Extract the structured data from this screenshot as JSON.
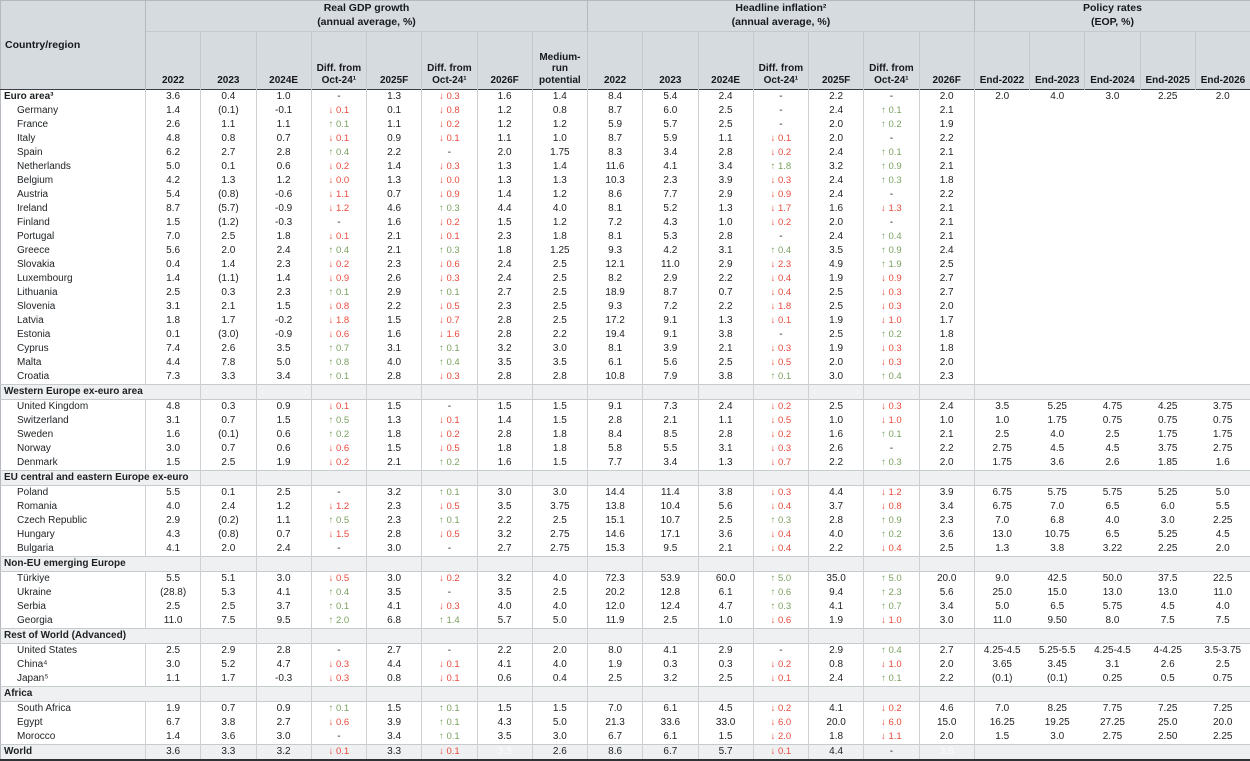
{
  "header": {
    "country": "Country/region",
    "groups": [
      {
        "title": "Real GDP growth",
        "subtitle": "(annual average, %)",
        "cols": [
          "2022",
          "2023",
          "2024E",
          "Diff. from Oct-24¹",
          "2025F",
          "Diff. from Oct-24¹",
          "2026F",
          "Medium-run potential"
        ]
      },
      {
        "title": "Headline inflation²",
        "subtitle": "(annual average, %)",
        "cols": [
          "2022",
          "2023",
          "2024E",
          "Diff. from Oct-24¹",
          "2025F",
          "Diff. from Oct-24¹",
          "2026F"
        ]
      },
      {
        "title": "Policy rates",
        "subtitle": "(EOP, %)",
        "cols": [
          "End-2022",
          "End-2023",
          "End-2024",
          "End-2025",
          "End-2026"
        ]
      }
    ]
  },
  "colors": {
    "diff_up": "#7ba161",
    "diff_down": "#e84a3c",
    "header_bg": "#d6dbdf",
    "band_bg": "#eef0f1"
  },
  "rows": [
    {
      "type": "bold",
      "label": "Euro area³",
      "gdp": [
        "3.6",
        "0.4",
        "1.0",
        "-",
        "1.3",
        "↓ 0.3",
        "1.6",
        "1.4"
      ],
      "inf": [
        "8.4",
        "5.4",
        "2.4",
        "-",
        "2.2",
        "-",
        "2.0"
      ],
      "pol": [
        "2.0",
        "4.0",
        "3.0",
        "2.25",
        "2.0"
      ]
    },
    {
      "type": "country",
      "label": "Germany",
      "gdp": [
        "1.4",
        "(0.1)",
        "-0.1",
        "↓ 0.1",
        "0.1",
        "↓ 0.8",
        "1.2",
        "0.8"
      ],
      "inf": [
        "8.7",
        "6.0",
        "2.5",
        "-",
        "2.4",
        "↑ 0.1",
        "2.1"
      ],
      "pol": [
        "",
        "",
        "",
        "",
        ""
      ]
    },
    {
      "type": "country",
      "label": "France",
      "gdp": [
        "2.6",
        "1.1",
        "1.1",
        "↑ 0.1",
        "1.1",
        "↓ 0.2",
        "1.2",
        "1.2"
      ],
      "inf": [
        "5.9",
        "5.7",
        "2.5",
        "-",
        "2.0",
        "↑ 0.2",
        "1.9"
      ],
      "pol": [
        "",
        "",
        "",
        "",
        ""
      ]
    },
    {
      "type": "country",
      "label": "Italy",
      "gdp": [
        "4.8",
        "0.8",
        "0.7",
        "↓ 0.1",
        "0.9",
        "↓ 0.1",
        "1.1",
        "1.0"
      ],
      "inf": [
        "8.7",
        "5.9",
        "1.1",
        "↓ 0.1",
        "2.0",
        "-",
        "2.2"
      ],
      "pol": [
        "",
        "",
        "",
        "",
        ""
      ]
    },
    {
      "type": "country",
      "label": "Spain",
      "gdp": [
        "6.2",
        "2.7",
        "2.8",
        "↑ 0.4",
        "2.2",
        "-",
        "2.0",
        "1.75"
      ],
      "inf": [
        "8.3",
        "3.4",
        "2.8",
        "↓ 0.2",
        "2.4",
        "↑ 0.1",
        "2.1"
      ],
      "pol": [
        "",
        "",
        "",
        "",
        ""
      ]
    },
    {
      "type": "country",
      "label": "Netherlands",
      "gdp": [
        "5.0",
        "0.1",
        "0.6",
        "↓ 0.2",
        "1.4",
        "↓ 0.3",
        "1.3",
        "1.4"
      ],
      "inf": [
        "11.6",
        "4.1",
        "3.4",
        "↑ 1.8",
        "3.2",
        "↑ 0.9",
        "2.1"
      ],
      "pol": [
        "",
        "",
        "",
        "",
        ""
      ]
    },
    {
      "type": "country",
      "label": "Belgium",
      "gdp": [
        "4.2",
        "1.3",
        "1.2",
        "↓ 0.0",
        "1.3",
        "↓ 0.0",
        "1.3",
        "1.3"
      ],
      "inf": [
        "10.3",
        "2.3",
        "3.9",
        "↓ 0.3",
        "2.4",
        "↑ 0.3",
        "1.8"
      ],
      "pol": [
        "",
        "",
        "",
        "",
        ""
      ]
    },
    {
      "type": "country",
      "label": "Austria",
      "gdp": [
        "5.4",
        "(0.8)",
        "-0.6",
        "↓ 1.1",
        "0.7",
        "↓ 0.9",
        "1.4",
        "1.2"
      ],
      "inf": [
        "8.6",
        "7.7",
        "2.9",
        "↓ 0.9",
        "2.4",
        "-",
        "2.2"
      ],
      "pol": [
        "",
        "",
        "",
        "",
        ""
      ]
    },
    {
      "type": "country",
      "label": "Ireland",
      "gdp": [
        "8.7",
        "(5.7)",
        "-0.9",
        "↓ 1.2",
        "4.6",
        "↑ 0.3",
        "4.4",
        "4.0"
      ],
      "inf": [
        "8.1",
        "5.2",
        "1.3",
        "↓ 1.7",
        "1.6",
        "↓ 1.3",
        "2.1"
      ],
      "pol": [
        "",
        "",
        "",
        "",
        ""
      ]
    },
    {
      "type": "country",
      "label": "Finland",
      "gdp": [
        "1.5",
        "(1.2)",
        "-0.3",
        "-",
        "1.6",
        "↓ 0.2",
        "1.5",
        "1.2"
      ],
      "inf": [
        "7.2",
        "4.3",
        "1.0",
        "↓ 0.2",
        "2.0",
        "-",
        "2.1"
      ],
      "pol": [
        "",
        "",
        "",
        "",
        ""
      ]
    },
    {
      "type": "country",
      "label": "Portugal",
      "gdp": [
        "7.0",
        "2.5",
        "1.8",
        "↓ 0.1",
        "2.1",
        "↓ 0.1",
        "2.3",
        "1.8"
      ],
      "inf": [
        "8.1",
        "5.3",
        "2.8",
        "-",
        "2.4",
        "↑ 0.4",
        "2.1"
      ],
      "pol": [
        "",
        "",
        "",
        "",
        ""
      ]
    },
    {
      "type": "country",
      "label": "Greece",
      "gdp": [
        "5.6",
        "2.0",
        "2.4",
        "↑ 0.4",
        "2.1",
        "↑ 0.3",
        "1.8",
        "1.25"
      ],
      "inf": [
        "9.3",
        "4.2",
        "3.1",
        "↑ 0.4",
        "3.5",
        "↑ 0.9",
        "2.4"
      ],
      "pol": [
        "",
        "",
        "",
        "",
        ""
      ]
    },
    {
      "type": "country",
      "label": "Slovakia",
      "gdp": [
        "0.4",
        "1.4",
        "2.3",
        "↓ 0.2",
        "2.3",
        "↓ 0.6",
        "2.4",
        "2.5"
      ],
      "inf": [
        "12.1",
        "11.0",
        "2.9",
        "↓ 2.3",
        "4.9",
        "↑ 1.9",
        "2.5"
      ],
      "pol": [
        "",
        "",
        "",
        "",
        ""
      ]
    },
    {
      "type": "country",
      "label": "Luxembourg",
      "gdp": [
        "1.4",
        "(1.1)",
        "1.4",
        "↓ 0.9",
        "2.6",
        "↓ 0.3",
        "2.4",
        "2.5"
      ],
      "inf": [
        "8.2",
        "2.9",
        "2.2",
        "↓ 0.4",
        "1.9",
        "↓ 0.9",
        "2.7"
      ],
      "pol": [
        "",
        "",
        "",
        "",
        ""
      ]
    },
    {
      "type": "country",
      "label": "Lithuania",
      "gdp": [
        "2.5",
        "0.3",
        "2.3",
        "↑ 0.1",
        "2.9",
        "↑ 0.1",
        "2.7",
        "2.5"
      ],
      "inf": [
        "18.9",
        "8.7",
        "0.7",
        "↓ 0.4",
        "2.5",
        "↓ 0.3",
        "2.7"
      ],
      "pol": [
        "",
        "",
        "",
        "",
        ""
      ]
    },
    {
      "type": "country",
      "label": "Slovenia",
      "gdp": [
        "3.1",
        "2.1",
        "1.5",
        "↓ 0.8",
        "2.2",
        "↓ 0.5",
        "2.3",
        "2.5"
      ],
      "inf": [
        "9.3",
        "7.2",
        "2.2",
        "↓ 1.8",
        "2.5",
        "↓ 0.3",
        "2.0"
      ],
      "pol": [
        "",
        "",
        "",
        "",
        ""
      ]
    },
    {
      "type": "country",
      "label": "Latvia",
      "gdp": [
        "1.8",
        "1.7",
        "-0.2",
        "↓ 1.8",
        "1.5",
        "↓ 0.7",
        "2.8",
        "2.5"
      ],
      "inf": [
        "17.2",
        "9.1",
        "1.3",
        "↓ 0.1",
        "1.9",
        "↓ 1.0",
        "1.7"
      ],
      "pol": [
        "",
        "",
        "",
        "",
        ""
      ]
    },
    {
      "type": "country",
      "label": "Estonia",
      "gdp": [
        "0.1",
        "(3.0)",
        "-0.9",
        "↓ 0.6",
        "1.6",
        "↓ 1.6",
        "2.8",
        "2.2"
      ],
      "inf": [
        "19.4",
        "9.1",
        "3.8",
        "-",
        "2.5",
        "↑ 0.2",
        "1.8"
      ],
      "pol": [
        "",
        "",
        "",
        "",
        ""
      ]
    },
    {
      "type": "country",
      "label": "Cyprus",
      "gdp": [
        "7.4",
        "2.6",
        "3.5",
        "↑ 0.7",
        "3.1",
        "↑ 0.1",
        "3.2",
        "3.0"
      ],
      "inf": [
        "8.1",
        "3.9",
        "2.1",
        "↓ 0.3",
        "1.9",
        "↓ 0.3",
        "1.8"
      ],
      "pol": [
        "",
        "",
        "",
        "",
        ""
      ]
    },
    {
      "type": "country",
      "label": "Malta",
      "gdp": [
        "4.4",
        "7.8",
        "5.0",
        "↑ 0.8",
        "4.0",
        "↑ 0.4",
        "3.5",
        "3.5"
      ],
      "inf": [
        "6.1",
        "5.6",
        "2.5",
        "↓ 0.5",
        "2.0",
        "↓ 0.3",
        "2.0"
      ],
      "pol": [
        "",
        "",
        "",
        "",
        ""
      ]
    },
    {
      "type": "country",
      "label": "Croatia",
      "gdp": [
        "7.3",
        "3.3",
        "3.4",
        "↑ 0.1",
        "2.8",
        "↓ 0.3",
        "2.8",
        "2.8"
      ],
      "inf": [
        "10.8",
        "7.9",
        "3.8",
        "↑ 0.1",
        "3.0",
        "↑ 0.4",
        "2.3"
      ],
      "pol": [
        "",
        "",
        "",
        "",
        ""
      ]
    },
    {
      "type": "section",
      "label": "Western Europe ex-euro area"
    },
    {
      "type": "country",
      "label": "United Kingdom",
      "gdp": [
        "4.8",
        "0.3",
        "0.9",
        "↓ 0.1",
        "1.5",
        "-",
        "1.5",
        "1.5"
      ],
      "inf": [
        "9.1",
        "7.3",
        "2.4",
        "↓ 0.2",
        "2.5",
        "↓ 0.3",
        "2.4"
      ],
      "pol": [
        "3.5",
        "5.25",
        "4.75",
        "4.25",
        "3.75"
      ]
    },
    {
      "type": "country",
      "label": "Switzerland",
      "gdp": [
        "3.1",
        "0.7",
        "1.5",
        "↑ 0.5",
        "1.3",
        "↓ 0.1",
        "1.4",
        "1.5"
      ],
      "inf": [
        "2.8",
        "2.1",
        "1.1",
        "↓ 0.5",
        "1.0",
        "↓ 1.0",
        "1.0"
      ],
      "pol": [
        "1.0",
        "1.75",
        "0.75",
        "0.75",
        "0.75"
      ]
    },
    {
      "type": "country",
      "label": "Sweden",
      "gdp": [
        "1.6",
        "(0.1)",
        "0.6",
        "↑ 0.2",
        "1.8",
        "↓ 0.2",
        "2.8",
        "1.8"
      ],
      "inf": [
        "8.4",
        "8.5",
        "2.8",
        "↓ 0.2",
        "1.6",
        "↑ 0.1",
        "2.1"
      ],
      "pol": [
        "2.5",
        "4.0",
        "2.5",
        "1.75",
        "1.75"
      ]
    },
    {
      "type": "country",
      "label": "Norway",
      "gdp": [
        "3.0",
        "0.7",
        "0.6",
        "↓ 0.6",
        "1.5",
        "↓ 0.5",
        "1.8",
        "1.8"
      ],
      "inf": [
        "5.8",
        "5.5",
        "3.1",
        "↓ 0.3",
        "2.6",
        "-",
        "2.2"
      ],
      "pol": [
        "2.75",
        "4.5",
        "4.5",
        "3.75",
        "2.75"
      ]
    },
    {
      "type": "country",
      "label": "Denmark",
      "gdp": [
        "1.5",
        "2.5",
        "1.9",
        "↓ 0.2",
        "2.1",
        "↑ 0.2",
        "1.6",
        "1.5"
      ],
      "inf": [
        "7.7",
        "3.4",
        "1.3",
        "↓ 0.7",
        "2.2",
        "↑ 0.3",
        "2.0"
      ],
      "pol": [
        "1.75",
        "3.6",
        "2.6",
        "1.85",
        "1.6"
      ]
    },
    {
      "type": "section",
      "label": "EU central and eastern Europe ex-euro"
    },
    {
      "type": "country",
      "label": "Poland",
      "gdp": [
        "5.5",
        "0.1",
        "2.5",
        "-",
        "3.2",
        "↑ 0.1",
        "3.0",
        "3.0"
      ],
      "inf": [
        "14.4",
        "11.4",
        "3.8",
        "↓ 0.3",
        "4.4",
        "↓ 1.2",
        "3.9"
      ],
      "pol": [
        "6.75",
        "5.75",
        "5.75",
        "5.25",
        "5.0"
      ]
    },
    {
      "type": "country",
      "label": "Romania",
      "gdp": [
        "4.0",
        "2.4",
        "1.2",
        "↓ 1.2",
        "2.3",
        "↓ 0.5",
        "3.5",
        "3.75"
      ],
      "inf": [
        "13.8",
        "10.4",
        "5.6",
        "↓ 0.4",
        "3.7",
        "↓ 0.8",
        "3.4"
      ],
      "pol": [
        "6.75",
        "7.0",
        "6.5",
        "6.0",
        "5.5"
      ]
    },
    {
      "type": "country",
      "label": "Czech Republic",
      "gdp": [
        "2.9",
        "(0.2)",
        "1.1",
        "↑ 0.5",
        "2.3",
        "↑ 0.1",
        "2.2",
        "2.5"
      ],
      "inf": [
        "15.1",
        "10.7",
        "2.5",
        "↑ 0.3",
        "2.8",
        "↑ 0.9",
        "2.3"
      ],
      "pol": [
        "7.0",
        "6.8",
        "4.0",
        "3.0",
        "2.25"
      ]
    },
    {
      "type": "country",
      "label": "Hungary",
      "gdp": [
        "4.3",
        "(0.8)",
        "0.7",
        "↓ 1.5",
        "2.8",
        "↓ 0.5",
        "3.2",
        "2.75"
      ],
      "inf": [
        "14.6",
        "17.1",
        "3.6",
        "↓ 0.4",
        "4.0",
        "↑ 0.2",
        "3.6"
      ],
      "pol": [
        "13.0",
        "10.75",
        "6.5",
        "5.25",
        "4.5"
      ]
    },
    {
      "type": "country",
      "label": "Bulgaria",
      "gdp": [
        "4.1",
        "2.0",
        "2.4",
        "-",
        "3.0",
        "-",
        "2.7",
        "2.75"
      ],
      "inf": [
        "15.3",
        "9.5",
        "2.1",
        "↓ 0.4",
        "2.2",
        "↓ 0.4",
        "2.5"
      ],
      "pol": [
        "1.3",
        "3.8",
        "3.22",
        "2.25",
        "2.0"
      ]
    },
    {
      "type": "section",
      "label": "Non-EU emerging Europe"
    },
    {
      "type": "country",
      "label": "Türkiye",
      "gdp": [
        "5.5",
        "5.1",
        "3.0",
        "↓ 0.5",
        "3.0",
        "↓ 0.2",
        "3.2",
        "4.0"
      ],
      "inf": [
        "72.3",
        "53.9",
        "60.0",
        "↑ 5.0",
        "35.0",
        "↑ 5.0",
        "20.0"
      ],
      "pol": [
        "9.0",
        "42.5",
        "50.0",
        "37.5",
        "22.5"
      ]
    },
    {
      "type": "country",
      "label": "Ukraine",
      "gdp": [
        "(28.8)",
        "5.3",
        "4.1",
        "↑ 0.4",
        "3.5",
        "-",
        "3.5",
        "2.5"
      ],
      "inf": [
        "20.2",
        "12.8",
        "6.1",
        "↑ 0.6",
        "9.4",
        "↑ 2.3",
        "5.6"
      ],
      "pol": [
        "25.0",
        "15.0",
        "13.0",
        "13.0",
        "11.0"
      ]
    },
    {
      "type": "country",
      "label": "Serbia",
      "gdp": [
        "2.5",
        "2.5",
        "3.7",
        "↑ 0.1",
        "4.1",
        "↓ 0.3",
        "4.0",
        "4.0"
      ],
      "inf": [
        "12.0",
        "12.4",
        "4.7",
        "↑ 0.3",
        "4.1",
        "↑ 0.7",
        "3.4"
      ],
      "pol": [
        "5.0",
        "6.5",
        "5.75",
        "4.5",
        "4.0"
      ]
    },
    {
      "type": "country",
      "label": "Georgia",
      "gdp": [
        "11.0",
        "7.5",
        "9.5",
        "↑ 2.0",
        "6.8",
        "↑ 1.4",
        "5.7",
        "5.0"
      ],
      "inf": [
        "11.9",
        "2.5",
        "1.0",
        "↓ 0.6",
        "1.9",
        "↓ 1.0",
        "3.0"
      ],
      "pol": [
        "11.0",
        "9.50",
        "8.0",
        "7.5",
        "7.5"
      ]
    },
    {
      "type": "section",
      "label": "Rest of World (Advanced)"
    },
    {
      "type": "country",
      "label": "United States",
      "gdp": [
        "2.5",
        "2.9",
        "2.8",
        "-",
        "2.7",
        "-",
        "2.2",
        "2.0"
      ],
      "inf": [
        "8.0",
        "4.1",
        "2.9",
        "-",
        "2.9",
        "↑ 0.4",
        "2.7"
      ],
      "pol": [
        "4.25-4.5",
        "5.25-5.5",
        "4.25-4.5",
        "4-4.25",
        "3.5-3.75"
      ]
    },
    {
      "type": "country",
      "label": "China⁴",
      "gdp": [
        "3.0",
        "5.2",
        "4.7",
        "↓ 0.3",
        "4.4",
        "↓ 0.1",
        "4.1",
        "4.0"
      ],
      "inf": [
        "1.9",
        "0.3",
        "0.3",
        "↓ 0.2",
        "0.8",
        "↓ 1.0",
        "2.0"
      ],
      "pol": [
        "3.65",
        "3.45",
        "3.1",
        "2.6",
        "2.5"
      ]
    },
    {
      "type": "country",
      "label": "Japan⁵",
      "gdp": [
        "1.1",
        "1.7",
        "-0.3",
        "↓ 0.3",
        "0.8",
        "↓ 0.1",
        "0.6",
        "0.4"
      ],
      "inf": [
        "2.5",
        "3.2",
        "2.5",
        "↓ 0.1",
        "2.4",
        "↑ 0.1",
        "2.2"
      ],
      "pol": [
        "(0.1)",
        "(0.1)",
        "0.25",
        "0.5",
        "0.75"
      ]
    },
    {
      "type": "section",
      "label": "Africa"
    },
    {
      "type": "country",
      "label": "South Africa",
      "gdp": [
        "1.9",
        "0.7",
        "0.9",
        "↑ 0.1",
        "1.5",
        "↑ 0.1",
        "1.5",
        "1.5"
      ],
      "inf": [
        "7.0",
        "6.1",
        "4.5",
        "↓ 0.2",
        "4.1",
        "↓ 0.2",
        "4.6"
      ],
      "pol": [
        "7.0",
        "8.25",
        "7.75",
        "7.25",
        "7.25"
      ]
    },
    {
      "type": "country",
      "label": "Egypt",
      "gdp": [
        "6.7",
        "3.8",
        "2.7",
        "↓ 0.6",
        "3.9",
        "↑ 0.1",
        "4.3",
        "5.0"
      ],
      "inf": [
        "21.3",
        "33.6",
        "33.0",
        "↓ 6.0",
        "20.0",
        "↓ 6.0",
        "15.0"
      ],
      "pol": [
        "16.25",
        "19.25",
        "27.25",
        "25.0",
        "20.0"
      ]
    },
    {
      "type": "country",
      "label": "Morocco",
      "gdp": [
        "1.4",
        "3.6",
        "3.0",
        "-",
        "3.4",
        "↑ 0.1",
        "3.5",
        "3.0"
      ],
      "inf": [
        "6.7",
        "6.1",
        "1.5",
        "↓ 2.0",
        "1.8",
        "↓ 1.1",
        "2.0"
      ],
      "pol": [
        "1.5",
        "3.0",
        "2.75",
        "2.50",
        "2.25"
      ]
    },
    {
      "type": "total",
      "label": "World",
      "gdp": [
        "3.6",
        "3.3",
        "3.2",
        "↓ 0.1",
        "3.3",
        "↓ 0.1",
        "~3.3",
        "2.6"
      ],
      "inf": [
        "8.6",
        "6.7",
        "5.7",
        "↓ 0.1",
        "4.4",
        "-",
        "~3.8"
      ],
      "pol": [
        "",
        "",
        "",
        "",
        ""
      ]
    }
  ]
}
